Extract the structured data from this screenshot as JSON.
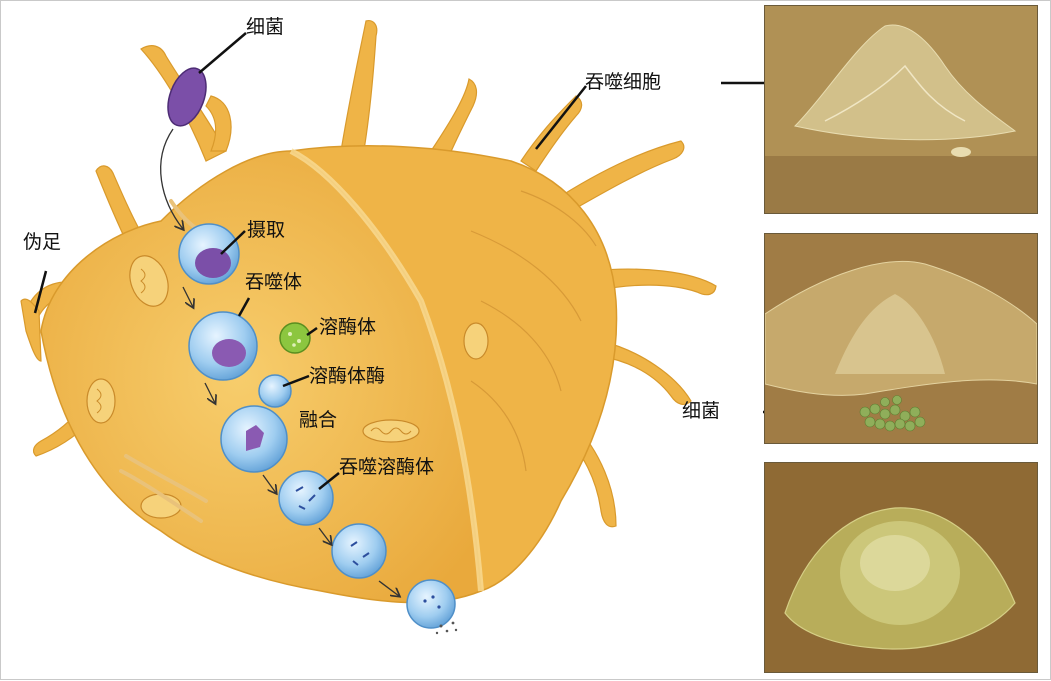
{
  "labels": {
    "bacteria": "细菌",
    "pseudopod": "伪足",
    "ingestion": "摄取",
    "phagosome": "吞噬体",
    "lysosome": "溶酶体",
    "lysosomal_enzyme": "溶酶体酶",
    "fusion": "融合",
    "phagolysosome": "吞噬溶酶体",
    "phagocyte": "吞噬细胞",
    "photo_bacteria": "细菌"
  },
  "colors": {
    "cell_body": "#f2bc52",
    "cell_edge": "#d99a2c",
    "bacterium": "#7b4fa8",
    "vesicle": "#8fc3ec",
    "lysosome": "#8cc63f",
    "photo_background": "#a88850",
    "photo_cell": "#c9b57a",
    "photo_bacteria": "#8fae5a"
  },
  "icons": [
    "arrow-icon",
    "bacterium-icon",
    "vesicle-icon",
    "mitochondrion-icon"
  ]
}
